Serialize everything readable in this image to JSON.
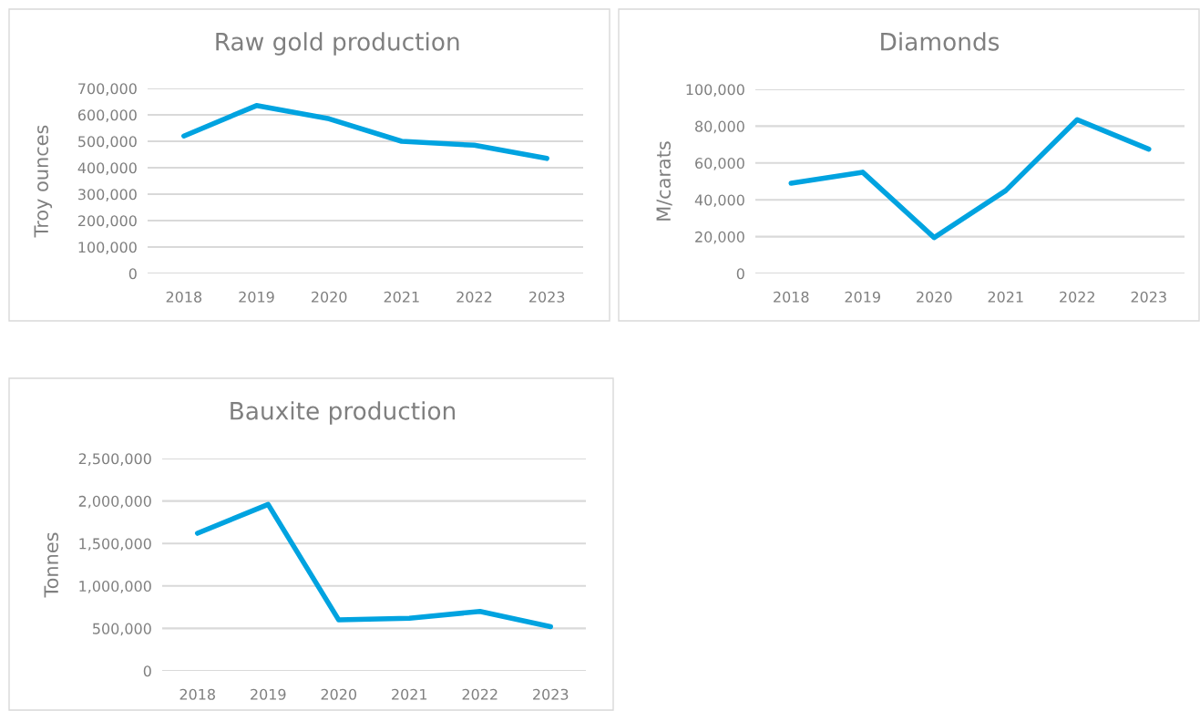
{
  "chart_data": [
    {
      "type": "line",
      "title": "Raw gold production",
      "ylabel": "Troy ounces",
      "categories": [
        "2018",
        "2019",
        "2020",
        "2021",
        "2022",
        "2023"
      ],
      "series": [
        {
          "color": "#00a3e0",
          "values": [
            520000,
            635000,
            585000,
            500000,
            485000,
            435000
          ]
        }
      ],
      "ylim": [
        0,
        700000
      ],
      "yticks": [
        0,
        {
          "value": 100000,
          "label": "100,000"
        },
        {
          "value": 200000,
          "label": "200,000"
        },
        {
          "value": 300000,
          "label": "300,000"
        },
        {
          "value": 400000,
          "label": "400,000"
        },
        {
          "value": 500000,
          "label": "500,000"
        },
        {
          "value": 600000,
          "label": "600,000"
        },
        {
          "value": 700000,
          "label": "700,000"
        }
      ],
      "grid": "y",
      "marker": "none",
      "line_style": "solid"
    },
    {
      "type": "line",
      "title": "Diamonds",
      "ylabel": "M/carats",
      "categories": [
        "2018",
        "2019",
        "2020",
        "2021",
        "2022",
        "2023"
      ],
      "series": [
        {
          "color": "#00a3e0",
          "values": [
            49000,
            55000,
            19500,
            45000,
            83500,
            67500
          ]
        }
      ],
      "ylim": [
        0,
        100000
      ],
      "yticks": [
        0,
        {
          "value": 20000,
          "label": "20,000"
        },
        {
          "value": 40000,
          "label": "40,000"
        },
        {
          "value": 60000,
          "label": "60,000"
        },
        {
          "value": 80000,
          "label": "80,000"
        },
        {
          "value": 100000,
          "label": "100,000"
        }
      ],
      "grid": "y",
      "marker": "none",
      "line_style": "solid"
    },
    {
      "type": "line",
      "title": "Bauxite production",
      "ylabel": "Tonnes",
      "categories": [
        "2018",
        "2019",
        "2020",
        "2021",
        "2022",
        "2023"
      ],
      "series": [
        {
          "color": "#00a3e0",
          "values": [
            1620000,
            1960000,
            600000,
            620000,
            700000,
            520000
          ]
        }
      ],
      "ylim": [
        0,
        2500000
      ],
      "yticks": [
        0,
        {
          "value": 500000,
          "label": "500,000"
        },
        {
          "value": 1000000,
          "label": "1,000,000"
        },
        {
          "value": 1500000,
          "label": "1,500,000"
        },
        {
          "value": 2000000,
          "label": "2,000,000"
        },
        {
          "value": 2500000,
          "label": "2,500,000"
        }
      ],
      "grid": "y",
      "marker": "none",
      "line_style": "solid"
    }
  ]
}
